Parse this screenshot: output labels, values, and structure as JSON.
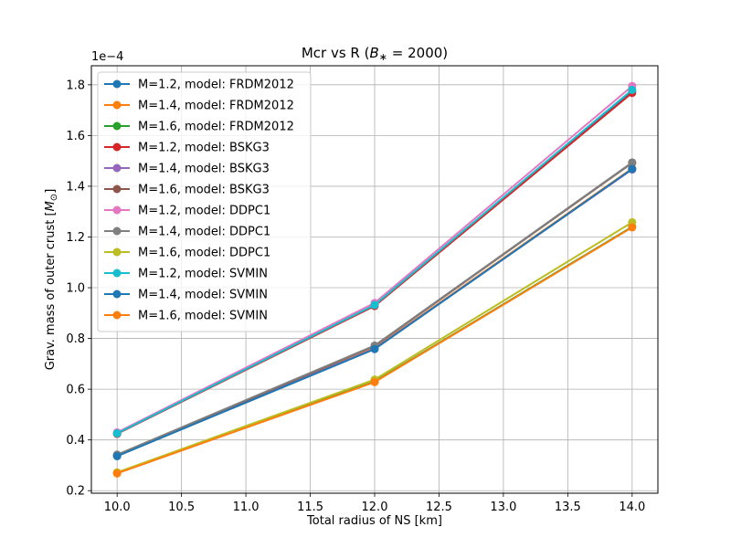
{
  "chart_data": {
    "type": "line",
    "title": "Mcr vs R (B* = 2000)",
    "xlabel": "Total radius of NS [km]",
    "ylabel": "Grav. mass of outer crust [M⊙]",
    "y_offset_label": "1e−4",
    "x": [
      10.0,
      12.0,
      14.0
    ],
    "xlim": [
      9.8,
      14.2
    ],
    "ylim": [
      0.19,
      1.875
    ],
    "x_ticks": [
      "10.0",
      "10.5",
      "11.0",
      "11.5",
      "12.0",
      "12.5",
      "13.0",
      "13.5",
      "14.0"
    ],
    "x_tick_values": [
      10.0,
      10.5,
      11.0,
      11.5,
      12.0,
      12.5,
      13.0,
      13.5,
      14.0
    ],
    "y_ticks": [
      "0.2",
      "0.4",
      "0.6",
      "0.8",
      "1.0",
      "1.2",
      "1.4",
      "1.6",
      "1.8"
    ],
    "y_tick_values": [
      0.2,
      0.4,
      0.6,
      0.8,
      1.0,
      1.2,
      1.4,
      1.6,
      1.8
    ],
    "grid": true,
    "legend_position": "top-left",
    "series": [
      {
        "name": "M=1.2, model: FRDM2012",
        "color": "#1f77b4",
        "values": [
          0.425,
          0.93,
          1.775
        ]
      },
      {
        "name": "M=1.4, model: FRDM2012",
        "color": "#ff7f0e",
        "values": [
          0.338,
          0.762,
          1.47
        ]
      },
      {
        "name": "M=1.6, model: FRDM2012",
        "color": "#2ca02c",
        "values": [
          0.27,
          0.63,
          1.24
        ]
      },
      {
        "name": "M=1.2, model: BSKG3",
        "color": "#d62728",
        "values": [
          0.424,
          0.928,
          1.768
        ]
      },
      {
        "name": "M=1.4, model: BSKG3",
        "color": "#9467bd",
        "values": [
          0.337,
          0.76,
          1.466
        ]
      },
      {
        "name": "M=1.6, model: BSKG3",
        "color": "#8c564b",
        "values": [
          0.34,
          0.77,
          1.492
        ]
      },
      {
        "name": "M=1.2, model: DDPC1",
        "color": "#e377c2",
        "values": [
          0.43,
          0.94,
          1.795
        ]
      },
      {
        "name": "M=1.4, model: DDPC1",
        "color": "#7f7f7f",
        "values": [
          0.342,
          0.772,
          1.494
        ]
      },
      {
        "name": "M=1.6, model: DDPC1",
        "color": "#bcbd22",
        "values": [
          0.272,
          0.638,
          1.258
        ]
      },
      {
        "name": "M=1.2, model: SVMIN",
        "color": "#17becf",
        "values": [
          0.426,
          0.932,
          1.78
        ]
      },
      {
        "name": "M=1.4, model: SVMIN",
        "color": "#1f77b4",
        "values": [
          0.336,
          0.758,
          1.468
        ]
      },
      {
        "name": "M=1.6, model: SVMIN",
        "color": "#ff7f0e",
        "values": [
          0.268,
          0.628,
          1.238
        ]
      }
    ]
  }
}
